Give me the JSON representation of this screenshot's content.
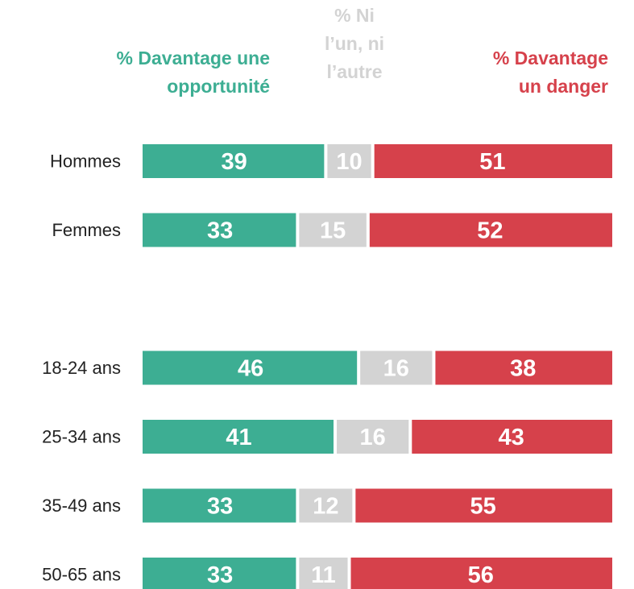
{
  "chart_data": {
    "type": "stacked_bar_horizontal",
    "categories": [
      "Hommes",
      "Femmes",
      null,
      "18-24 ans",
      "25-34 ans",
      "35-49 ans",
      "50-65 ans"
    ],
    "series": [
      {
        "name": "% Davantage une opportunité",
        "color": "#3dae93",
        "values": [
          39,
          33,
          null,
          46,
          41,
          33,
          33
        ]
      },
      {
        "name": "% Ni l’un, ni l’autre",
        "color": "#d3d3d3",
        "values": [
          10,
          15,
          null,
          16,
          16,
          12,
          11
        ]
      },
      {
        "name": "% Davantage un danger",
        "color": "#d6414b",
        "values": [
          51,
          52,
          null,
          38,
          43,
          55,
          56
        ]
      }
    ],
    "xlim": [
      0,
      100
    ]
  }
}
